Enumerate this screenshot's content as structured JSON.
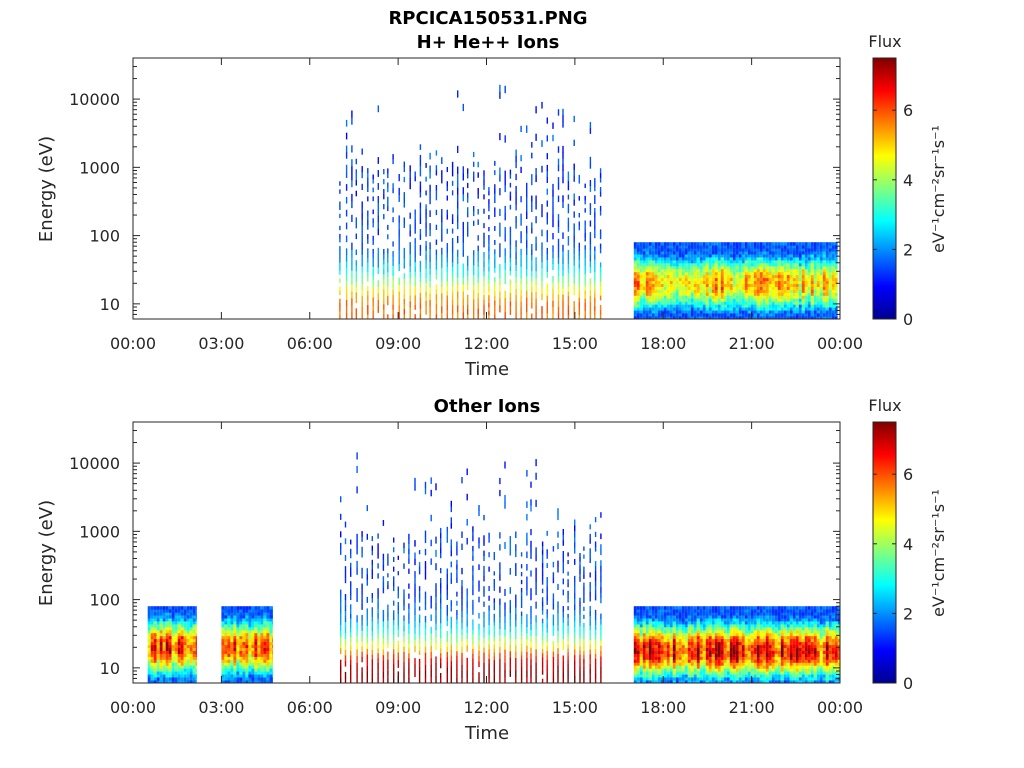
{
  "page_title": "RPCICA150531.PNG",
  "colorbar": {
    "label": "Flux",
    "unit_text": "eV⁻¹cm⁻²sr⁻¹s⁻¹",
    "ticks": [
      "0",
      "2",
      "4",
      "6"
    ],
    "range": [
      0,
      7.5
    ],
    "colormap": "jet"
  },
  "chart_data": [
    {
      "type": "heatmap",
      "title": "H+ He++ Ions",
      "xlabel": "Time",
      "ylabel": "Energy (eV)",
      "x_ticks": [
        "00:00",
        "03:00",
        "06:00",
        "09:00",
        "12:00",
        "15:00",
        "18:00",
        "21:00",
        "00:00"
      ],
      "x_range_hours": [
        0,
        24
      ],
      "y_ticks": [
        "10",
        "100",
        "1000",
        "10000"
      ],
      "y_scale": "log",
      "y_range_eV": [
        6,
        40000
      ],
      "blocks": [
        {
          "start": "07:00",
          "end": "16:00",
          "pattern": "striped",
          "energy_max_eV": 25000,
          "peak_flux": 4.5,
          "peak_energy_eV": 8
        },
        {
          "start": "17:00",
          "end": "23:55",
          "pattern": "dense",
          "energy_max_eV": 80,
          "peak_flux": 5.5,
          "peak_energy_eV": 20
        }
      ]
    },
    {
      "type": "heatmap",
      "title": "Other Ions",
      "xlabel": "Time",
      "ylabel": "Energy (eV)",
      "x_ticks": [
        "00:00",
        "03:00",
        "06:00",
        "09:00",
        "12:00",
        "15:00",
        "18:00",
        "21:00",
        "00:00"
      ],
      "x_range_hours": [
        0,
        24
      ],
      "y_ticks": [
        "10",
        "100",
        "1000",
        "10000"
      ],
      "y_scale": "log",
      "y_range_eV": [
        6,
        40000
      ],
      "blocks": [
        {
          "start": "00:30",
          "end": "02:10",
          "pattern": "dense",
          "energy_max_eV": 80,
          "peak_flux": 6.5,
          "peak_energy_eV": 20
        },
        {
          "start": "03:00",
          "end": "04:45",
          "pattern": "dense",
          "energy_max_eV": 80,
          "peak_flux": 6.3,
          "peak_energy_eV": 20
        },
        {
          "start": "07:00",
          "end": "16:00",
          "pattern": "striped",
          "energy_max_eV": 15000,
          "peak_flux": 6.0,
          "peak_energy_eV": 8
        },
        {
          "start": "17:00",
          "end": "24:00",
          "pattern": "dense",
          "energy_max_eV": 80,
          "peak_flux": 6.8,
          "peak_energy_eV": 18
        }
      ]
    }
  ]
}
